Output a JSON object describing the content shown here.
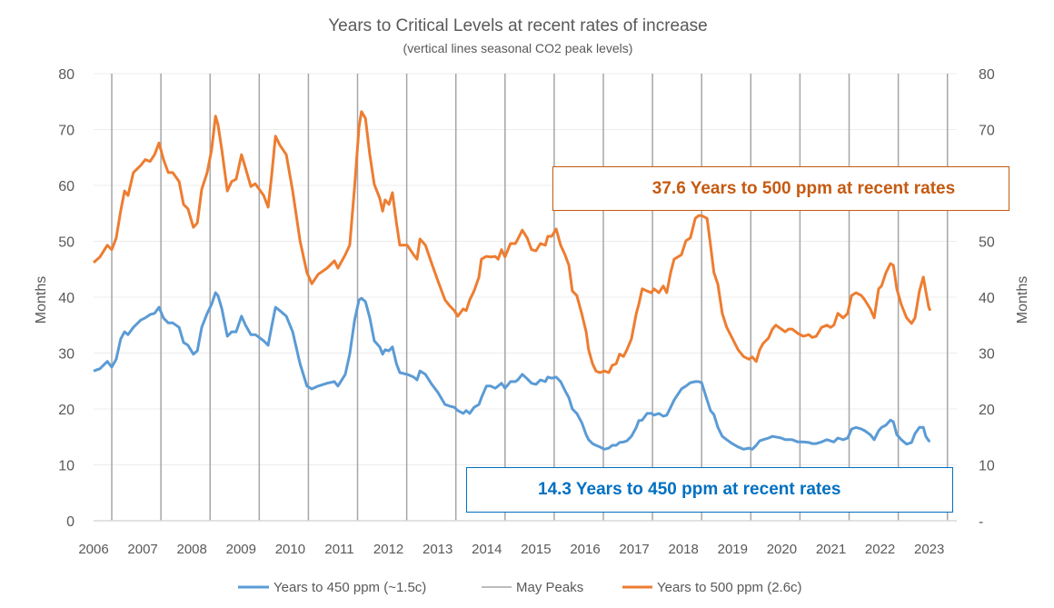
{
  "chart_data": {
    "type": "line",
    "title": "Years to Critical Levels at recent rates of increase",
    "subtitle": "(vertical lines seasonal CO2 peak levels)",
    "ylabel": "Months",
    "ylabel_right": "Months",
    "ylim": [
      0,
      80
    ],
    "yticks": [
      "0",
      "10",
      "20",
      "30",
      "40",
      "50",
      "60",
      "70",
      "80"
    ],
    "yticks_right": [
      "-",
      "10",
      "20",
      "30",
      "40",
      "50",
      "60",
      "70",
      "80"
    ],
    "xlim": [
      2006,
      2023.5
    ],
    "xticks": [
      "2006",
      "2007",
      "2008",
      "2009",
      "2010",
      "2011",
      "2012",
      "2013",
      "2014",
      "2015",
      "2016",
      "2017",
      "2018",
      "2019",
      "2020",
      "2021",
      "2022",
      "2023"
    ],
    "grid": "horizontal",
    "legend_position": "bottom",
    "vlines": {
      "name": "May Peaks",
      "x": [
        2006.37,
        2007.37,
        2008.37,
        2009.37,
        2010.37,
        2011.37,
        2012.37,
        2013.37,
        2014.37,
        2015.37,
        2016.37,
        2017.37,
        2018.37,
        2019.37,
        2020.37,
        2021.37,
        2022.37,
        2023.37
      ],
      "color": "#a6a6a6"
    },
    "x": [
      2006.0,
      2006.13,
      2006.28,
      2006.37,
      2006.46,
      2006.55,
      2006.63,
      2006.7,
      2006.81,
      2006.96,
      2007.05,
      2007.15,
      2007.24,
      2007.33,
      2007.42,
      2007.52,
      2007.61,
      2007.74,
      2007.83,
      2007.92,
      2008.03,
      2008.11,
      2008.2,
      2008.31,
      2008.4,
      2008.48,
      2008.53,
      2008.61,
      2008.72,
      2008.81,
      2008.9,
      2009.01,
      2009.09,
      2009.2,
      2009.29,
      2009.46,
      2009.55,
      2009.62,
      2009.7,
      2009.79,
      2009.92,
      2010.05,
      2010.2,
      2010.34,
      2010.44,
      2010.57,
      2010.75,
      2010.9,
      2010.97,
      2011.12,
      2011.21,
      2011.31,
      2011.4,
      2011.45,
      2011.53,
      2011.62,
      2011.71,
      2011.82,
      2011.88,
      2011.93,
      2012.01,
      2012.08,
      2012.16,
      2012.23,
      2012.38,
      2012.51,
      2012.58,
      2012.64,
      2012.75,
      2012.88,
      2013.01,
      2013.15,
      2013.25,
      2013.34,
      2013.41,
      2013.52,
      2013.58,
      2013.65,
      2013.74,
      2013.84,
      2013.89,
      2013.99,
      2014.08,
      2014.17,
      2014.23,
      2014.3,
      2014.37,
      2014.48,
      2014.58,
      2014.63,
      2014.72,
      2014.82,
      2014.91,
      2015.0,
      2015.09,
      2015.19,
      2015.24,
      2015.32,
      2015.41,
      2015.5,
      2015.59,
      2015.67,
      2015.74,
      2015.83,
      2015.93,
      2016.02,
      2016.07,
      2016.15,
      2016.22,
      2016.3,
      2016.39,
      2016.48,
      2016.55,
      2016.63,
      2016.7,
      2016.78,
      2016.85,
      2016.94,
      2017.04,
      2017.09,
      2017.16,
      2017.26,
      2017.35,
      2017.4,
      2017.5,
      2017.59,
      2017.66,
      2017.74,
      2017.81,
      2017.96,
      2018.05,
      2018.14,
      2018.24,
      2018.31,
      2018.37,
      2018.48,
      2018.55,
      2018.62,
      2018.7,
      2018.79,
      2018.88,
      2018.99,
      2019.11,
      2019.22,
      2019.33,
      2019.4,
      2019.48,
      2019.55,
      2019.62,
      2019.73,
      2019.81,
      2019.88,
      2019.99,
      2020.07,
      2020.14,
      2020.21,
      2020.33,
      2020.44,
      2020.55,
      2020.62,
      2020.7,
      2020.81,
      2020.92,
      2020.99,
      2021.06,
      2021.14,
      2021.25,
      2021.34,
      2021.42,
      2021.51,
      2021.62,
      2021.69,
      2021.8,
      2021.88,
      2021.97,
      2022.03,
      2022.12,
      2022.21,
      2022.27,
      2022.34,
      2022.43,
      2022.54,
      2022.64,
      2022.71,
      2022.8,
      2022.88,
      2022.93,
      2022.99,
      2023.02
    ],
    "series": [
      {
        "name": "Years to 450 ppm (~1.5c)",
        "color": "#5b9bd5",
        "values": [
          26.8,
          27.2,
          28.5,
          27.5,
          28.9,
          32.5,
          33.8,
          33.3,
          34.6,
          35.9,
          36.3,
          36.9,
          37.1,
          38.2,
          36.3,
          35.4,
          35.4,
          34.6,
          31.9,
          31.4,
          29.8,
          30.4,
          34.6,
          37.1,
          38.7,
          40.8,
          40.3,
          37.9,
          33.0,
          33.8,
          33.8,
          36.6,
          35.0,
          33.3,
          33.3,
          32.2,
          31.4,
          34.6,
          38.2,
          37.6,
          36.6,
          33.8,
          28.1,
          24.1,
          23.6,
          24.1,
          24.6,
          24.9,
          24.1,
          26.2,
          29.8,
          35.9,
          39.5,
          39.8,
          39.2,
          36.3,
          32.2,
          31.1,
          29.8,
          30.6,
          30.4,
          31.1,
          28.1,
          26.5,
          26.2,
          25.7,
          25.2,
          26.8,
          26.2,
          24.4,
          22.9,
          20.8,
          20.5,
          20.3,
          19.7,
          19.2,
          19.7,
          19.2,
          20.3,
          20.8,
          22.0,
          24.1,
          24.1,
          23.7,
          24.1,
          24.6,
          23.7,
          24.9,
          24.9,
          25.2,
          26.2,
          25.4,
          24.6,
          24.4,
          25.2,
          24.9,
          25.7,
          25.5,
          25.7,
          24.9,
          23.3,
          22.0,
          20.0,
          19.2,
          17.6,
          15.4,
          14.5,
          13.8,
          13.5,
          13.2,
          12.8,
          13.0,
          13.5,
          13.5,
          14.0,
          14.1,
          14.3,
          15.1,
          16.7,
          17.9,
          18.0,
          19.2,
          19.2,
          18.9,
          19.2,
          18.7,
          18.9,
          20.3,
          21.6,
          23.6,
          24.1,
          24.7,
          24.9,
          24.9,
          24.7,
          21.6,
          19.7,
          19.0,
          16.7,
          15.1,
          14.5,
          13.8,
          13.2,
          12.8,
          13.0,
          12.8,
          13.5,
          14.3,
          14.5,
          14.8,
          15.1,
          15.0,
          14.8,
          14.5,
          14.5,
          14.5,
          14.1,
          14.1,
          14.0,
          13.8,
          13.8,
          14.1,
          14.5,
          14.3,
          14.1,
          14.8,
          14.5,
          14.8,
          16.4,
          16.7,
          16.4,
          16.1,
          15.4,
          14.5,
          16.1,
          16.7,
          17.1,
          18.0,
          17.7,
          15.4,
          14.5,
          13.7,
          14.0,
          15.6,
          16.7,
          16.7,
          15.1,
          14.3,
          14.3
        ]
      },
      {
        "name": "Years to 500 ppm (2.6c)",
        "color": "#ed7d31",
        "values": [
          46.2,
          47.2,
          49.3,
          48.5,
          50.6,
          55.4,
          59.0,
          58.2,
          62.3,
          63.6,
          64.6,
          64.3,
          65.5,
          67.6,
          64.7,
          62.3,
          62.3,
          60.7,
          56.6,
          55.8,
          52.5,
          53.3,
          59.3,
          62.3,
          66.3,
          72.4,
          70.9,
          66.3,
          59.0,
          60.7,
          61.1,
          65.5,
          63.1,
          59.8,
          60.3,
          58.2,
          56.1,
          61.5,
          68.8,
          67.2,
          65.5,
          59.0,
          50.1,
          44.4,
          42.4,
          44.1,
          45.2,
          46.5,
          45.2,
          47.6,
          49.3,
          59.8,
          70.4,
          73.2,
          72.0,
          65.5,
          60.2,
          57.7,
          55.4,
          57.4,
          56.6,
          58.7,
          53.3,
          49.3,
          49.3,
          47.6,
          46.8,
          50.4,
          49.3,
          46.0,
          42.8,
          39.5,
          38.4,
          37.6,
          36.6,
          37.9,
          37.6,
          39.5,
          41.1,
          43.6,
          46.8,
          47.3,
          47.2,
          47.3,
          46.8,
          48.5,
          47.2,
          49.6,
          49.6,
          50.4,
          52.0,
          50.6,
          48.5,
          48.3,
          49.6,
          49.3,
          50.9,
          50.9,
          52.2,
          49.3,
          47.6,
          45.7,
          41.1,
          40.3,
          37.1,
          33.8,
          30.6,
          28.1,
          26.8,
          26.5,
          26.8,
          26.5,
          27.8,
          28.1,
          29.8,
          29.4,
          30.6,
          32.5,
          37.1,
          38.7,
          41.5,
          41.1,
          40.8,
          41.5,
          40.8,
          42.0,
          40.8,
          44.4,
          46.8,
          47.6,
          50.1,
          50.6,
          54.1,
          54.6,
          54.6,
          54.1,
          49.3,
          44.4,
          42.3,
          37.1,
          34.6,
          32.7,
          30.6,
          29.4,
          28.9,
          29.3,
          28.5,
          30.6,
          31.7,
          32.7,
          34.3,
          35.0,
          34.3,
          33.8,
          34.3,
          34.3,
          33.5,
          33.0,
          33.3,
          32.8,
          33.0,
          34.6,
          35.0,
          34.6,
          35.0,
          37.1,
          36.3,
          37.1,
          40.3,
          40.8,
          40.3,
          39.5,
          37.9,
          36.3,
          41.5,
          42.0,
          44.4,
          46.0,
          45.7,
          41.5,
          38.7,
          36.3,
          35.3,
          36.3,
          41.1,
          43.6,
          41.1,
          38.2,
          37.6
        ]
      }
    ],
    "annotations": [
      {
        "text": "37.6 Years to 500 ppm at recent rates",
        "color": "#c55a11"
      },
      {
        "text": "14.3 Years to 450 ppm at recent rates",
        "color": "#0070c0"
      }
    ]
  }
}
